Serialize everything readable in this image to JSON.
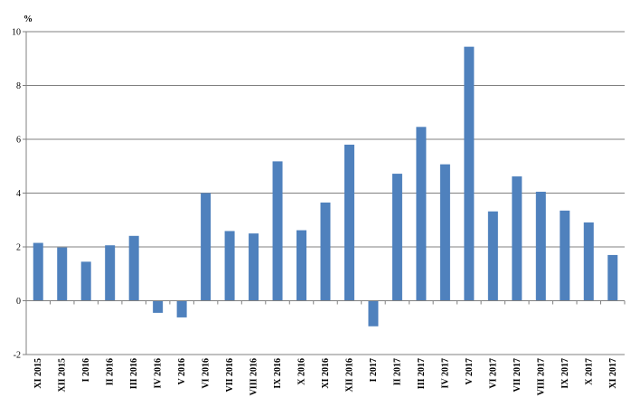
{
  "chart_data": {
    "type": "bar",
    "title": "",
    "xlabel": "",
    "ylabel": "%",
    "ylim": [
      -2,
      10
    ],
    "yticks": [
      "-2",
      "0",
      "2",
      "4",
      "6",
      "8",
      "10"
    ],
    "grid": true,
    "bar_color": "#4f81bd",
    "categories": [
      "XI 2015",
      "XII 2015",
      "I 2016",
      "II 2016",
      "III 2016",
      "IV 2016",
      "V 2016",
      "VI 2016",
      "VII 2016",
      "VIII 2016",
      "IX 2016",
      "X 2016",
      "XI 2016",
      "XII 2016",
      "I 2017",
      "II 2017",
      "III 2017",
      "IV 2017",
      "V 2017",
      "VI 2017",
      "VII 2017",
      "VIII 2017",
      "IX 2017",
      "X 2017",
      "XI 2017"
    ],
    "values": [
      2.15,
      1.98,
      1.45,
      2.06,
      2.41,
      -0.45,
      -0.62,
      4.0,
      2.59,
      2.5,
      5.18,
      2.62,
      3.65,
      5.8,
      -0.95,
      4.72,
      6.46,
      5.07,
      9.44,
      3.32,
      4.62,
      4.05,
      3.35,
      2.91,
      1.7
    ]
  }
}
